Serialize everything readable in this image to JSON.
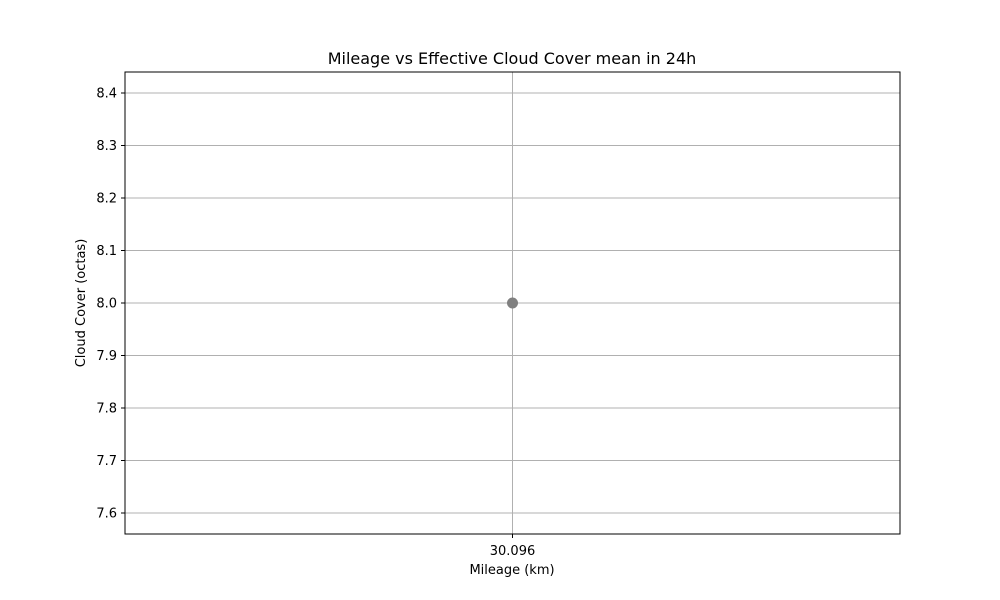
{
  "chart_data": {
    "type": "scatter",
    "title": "Mileage vs Effective Cloud Cover mean in 24h",
    "xlabel": "Mileage (km)",
    "ylabel": "Cloud Cover (octas)",
    "x_ticks": [
      "30.096"
    ],
    "y_ticks": [
      7.6,
      7.7,
      7.8,
      7.9,
      8.0,
      8.1,
      8.2,
      8.3,
      8.4
    ],
    "ylim": [
      7.56,
      8.44
    ],
    "grid": true,
    "series": [
      {
        "points": [
          {
            "x": "30.096",
            "y": 8.0
          }
        ],
        "color": "#808080"
      }
    ]
  }
}
